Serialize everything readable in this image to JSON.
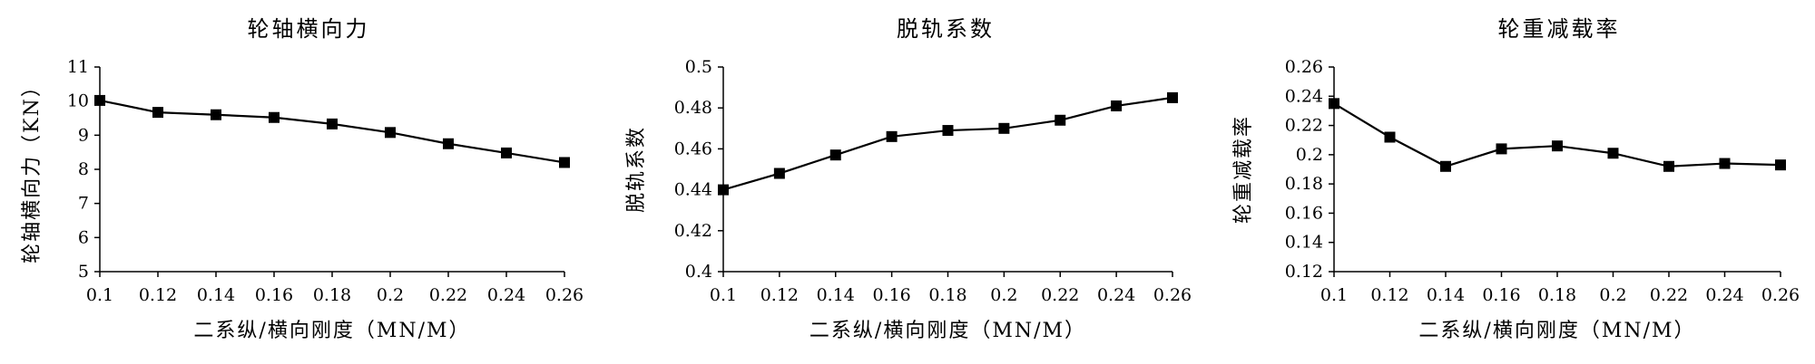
{
  "chart_data": [
    {
      "type": "line",
      "title": "轮轴横向力",
      "xlabel": "二系纵/横向刚度（MN/M）",
      "ylabel": "轮轴横向力（KN）",
      "x": [
        0.1,
        0.12,
        0.14,
        0.16,
        0.18,
        0.2,
        0.22,
        0.24,
        0.26
      ],
      "x_tick_labels": [
        "0.1",
        "0.12",
        "0.14",
        "0.16",
        "0.18",
        "0.2",
        "0.22",
        "0.24",
        "0.26"
      ],
      "y_ticks": [
        5,
        6,
        7,
        8,
        9,
        10,
        11
      ],
      "y_tick_labels": [
        "5",
        "6",
        "7",
        "8",
        "9",
        "10",
        "11"
      ],
      "ylim": [
        5,
        11
      ],
      "values": [
        10.02,
        9.67,
        9.6,
        9.52,
        9.33,
        9.08,
        8.75,
        8.48,
        8.2
      ],
      "marker": "square",
      "line_color": "#000000",
      "grid": false,
      "legend": "none"
    },
    {
      "type": "line",
      "title": "脱轨系数",
      "xlabel": "二系纵/横向刚度（MN/M）",
      "ylabel": "脱轨系数",
      "x": [
        0.1,
        0.12,
        0.14,
        0.16,
        0.18,
        0.2,
        0.22,
        0.24,
        0.26
      ],
      "x_tick_labels": [
        "0.1",
        "0.12",
        "0.14",
        "0.16",
        "0.18",
        "0.2",
        "0.22",
        "0.24",
        "0.26"
      ],
      "y_ticks": [
        0.4,
        0.42,
        0.44,
        0.46,
        0.48,
        0.5
      ],
      "y_tick_labels": [
        "0.4",
        "0.42",
        "0.44",
        "0.46",
        "0.48",
        "0.5"
      ],
      "ylim": [
        0.4,
        0.5
      ],
      "values": [
        0.44,
        0.448,
        0.457,
        0.466,
        0.469,
        0.47,
        0.474,
        0.481,
        0.485
      ],
      "marker": "square",
      "line_color": "#000000",
      "grid": false,
      "legend": "none"
    },
    {
      "type": "line",
      "title": "轮重减载率",
      "xlabel": "二系纵/横向刚度（MN/M）",
      "ylabel": "轮重减载率",
      "x": [
        0.1,
        0.12,
        0.14,
        0.16,
        0.18,
        0.2,
        0.22,
        0.24,
        0.26
      ],
      "x_tick_labels": [
        "0.1",
        "0.12",
        "0.14",
        "0.16",
        "0.18",
        "0.2",
        "0.22",
        "0.24",
        "0.26"
      ],
      "y_ticks": [
        0.12,
        0.14,
        0.16,
        0.18,
        0.2,
        0.22,
        0.24,
        0.26
      ],
      "y_tick_labels": [
        "0.12",
        "0.14",
        "0.16",
        "0.18",
        "0.2",
        "0.22",
        "0.24",
        "0.26"
      ],
      "ylim": [
        0.12,
        0.26
      ],
      "values": [
        0.235,
        0.212,
        0.192,
        0.204,
        0.206,
        0.201,
        0.192,
        0.194,
        0.193
      ],
      "marker": "square",
      "line_color": "#000000",
      "grid": false,
      "legend": "none"
    }
  ]
}
